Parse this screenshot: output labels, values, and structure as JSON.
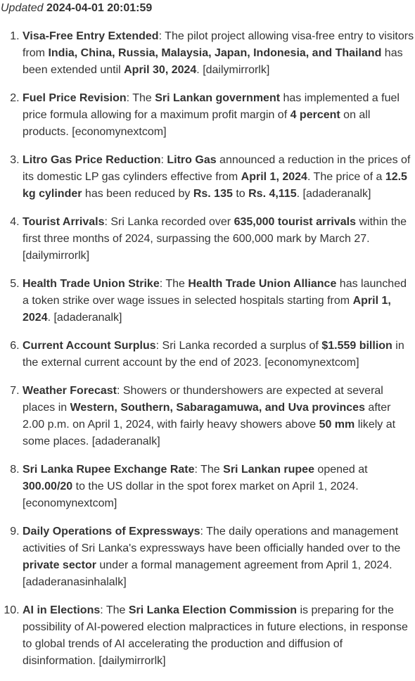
{
  "updated": {
    "label": "Updated",
    "timestamp": "2024-04-01 20:01:59"
  },
  "items": [
    {
      "segments": [
        {
          "t": "Visa-Free Entry Extended",
          "b": true
        },
        {
          "t": ": The pilot project allowing visa-free entry to visitors from "
        },
        {
          "t": "India, China, Russia, Malaysia, Japan, Indonesia, and Thailand",
          "b": true
        },
        {
          "t": " has been extended until "
        },
        {
          "t": "April 30, 2024",
          "b": true
        },
        {
          "t": ". [dailymirrorlk]"
        }
      ]
    },
    {
      "segments": [
        {
          "t": "Fuel Price Revision",
          "b": true
        },
        {
          "t": ": The "
        },
        {
          "t": "Sri Lankan government",
          "b": true
        },
        {
          "t": " has implemented a fuel price formula allowing for a maximum profit margin of "
        },
        {
          "t": "4 percent",
          "b": true
        },
        {
          "t": " on all products. [economynextcom]"
        }
      ]
    },
    {
      "segments": [
        {
          "t": "Litro Gas Price Reduction",
          "b": true
        },
        {
          "t": ": "
        },
        {
          "t": "Litro Gas",
          "b": true
        },
        {
          "t": " announced a reduction in the prices of its domestic LP gas cylinders effective from "
        },
        {
          "t": "April 1, 2024",
          "b": true
        },
        {
          "t": ". The price of a "
        },
        {
          "t": "12.5 kg cylinder",
          "b": true
        },
        {
          "t": " has been reduced by "
        },
        {
          "t": "Rs. 135",
          "b": true
        },
        {
          "t": " to "
        },
        {
          "t": "Rs. 4,115",
          "b": true
        },
        {
          "t": ". [adaderanalk]"
        }
      ]
    },
    {
      "segments": [
        {
          "t": "Tourist Arrivals",
          "b": true
        },
        {
          "t": ": Sri Lanka recorded over "
        },
        {
          "t": "635,000 tourist arrivals",
          "b": true
        },
        {
          "t": " within the first three months of 2024, surpassing the 600,000 mark by March 27. [dailymirrorlk]"
        }
      ]
    },
    {
      "segments": [
        {
          "t": "Health Trade Union Strike",
          "b": true
        },
        {
          "t": ": The "
        },
        {
          "t": "Health Trade Union Alliance",
          "b": true
        },
        {
          "t": " has launched a token strike over wage issues in selected hospitals starting from "
        },
        {
          "t": "April 1, 2024",
          "b": true
        },
        {
          "t": ". [adaderanalk]"
        }
      ]
    },
    {
      "segments": [
        {
          "t": "Current Account Surplus",
          "b": true
        },
        {
          "t": ": Sri Lanka recorded a surplus of "
        },
        {
          "t": "$1.559 billion",
          "b": true
        },
        {
          "t": " in the external current account by the end of 2023. [economynextcom]"
        }
      ]
    },
    {
      "segments": [
        {
          "t": "Weather Forecast",
          "b": true
        },
        {
          "t": ": Showers or thundershowers are expected at several places in "
        },
        {
          "t": "Western, Southern, Sabaragamuwa, and Uva provinces",
          "b": true
        },
        {
          "t": " after 2.00 p.m. on April 1, 2024, with fairly heavy showers above "
        },
        {
          "t": "50 mm",
          "b": true
        },
        {
          "t": " likely at some places. [adaderanalk]"
        }
      ]
    },
    {
      "segments": [
        {
          "t": "Sri Lanka Rupee Exchange Rate",
          "b": true
        },
        {
          "t": ": The "
        },
        {
          "t": "Sri Lankan rupee",
          "b": true
        },
        {
          "t": " opened at "
        },
        {
          "t": "300.00/20",
          "b": true
        },
        {
          "t": " to the US dollar in the spot forex market on April 1, 2024. [economynextcom]"
        }
      ]
    },
    {
      "segments": [
        {
          "t": "Daily Operations of Expressways",
          "b": true
        },
        {
          "t": ": The daily operations and management activities of Sri Lanka's expressways have been officially handed over to the "
        },
        {
          "t": "private sector",
          "b": true
        },
        {
          "t": " under a formal management agreement from April 1, 2024. [adaderanasinhalalk]"
        }
      ]
    },
    {
      "segments": [
        {
          "t": "AI in Elections",
          "b": true
        },
        {
          "t": ": The "
        },
        {
          "t": "Sri Lanka Election Commission",
          "b": true
        },
        {
          "t": " is preparing for the possibility of AI-powered election malpractices in future elections, in response to global trends of AI accelerating the production and diffusion of disinformation. [dailymirrorlk]"
        }
      ]
    }
  ]
}
